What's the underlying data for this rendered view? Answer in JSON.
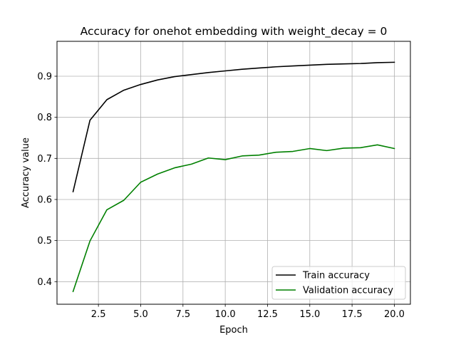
{
  "chart_data": {
    "type": "line",
    "title": "Accuracy for onehot embedding with weight_decay = 0",
    "xlabel": "Epoch",
    "ylabel": "Accuracy value",
    "x": [
      1,
      2,
      3,
      4,
      5,
      6,
      7,
      8,
      9,
      10,
      11,
      12,
      13,
      14,
      15,
      16,
      17,
      18,
      19,
      20
    ],
    "xlim": [
      0.05,
      20.95
    ],
    "ylim": [
      0.345,
      0.985
    ],
    "xticks": [
      2.5,
      5.0,
      7.5,
      10.0,
      12.5,
      15.0,
      17.5,
      20.0
    ],
    "xtick_labels": [
      "2.5",
      "5.0",
      "7.5",
      "10.0",
      "12.5",
      "15.0",
      "17.5",
      "20.0"
    ],
    "yticks": [
      0.4,
      0.5,
      0.6,
      0.7,
      0.8,
      0.9
    ],
    "ytick_labels": [
      "0.4",
      "0.5",
      "0.6",
      "0.7",
      "0.8",
      "0.9"
    ],
    "grid": true,
    "legend_position": "lower-right",
    "series": [
      {
        "name": "Train accuracy",
        "color": "#000000",
        "values": [
          0.619,
          0.793,
          0.843,
          0.866,
          0.88,
          0.891,
          0.899,
          0.904,
          0.909,
          0.913,
          0.917,
          0.92,
          0.923,
          0.925,
          0.927,
          0.929,
          0.93,
          0.931,
          0.933,
          0.934
        ]
      },
      {
        "name": "Validation accuracy",
        "color": "#008000",
        "values": [
          0.376,
          0.499,
          0.575,
          0.598,
          0.642,
          0.662,
          0.677,
          0.686,
          0.701,
          0.697,
          0.706,
          0.708,
          0.715,
          0.717,
          0.724,
          0.719,
          0.725,
          0.726,
          0.733,
          0.724
        ]
      }
    ]
  }
}
